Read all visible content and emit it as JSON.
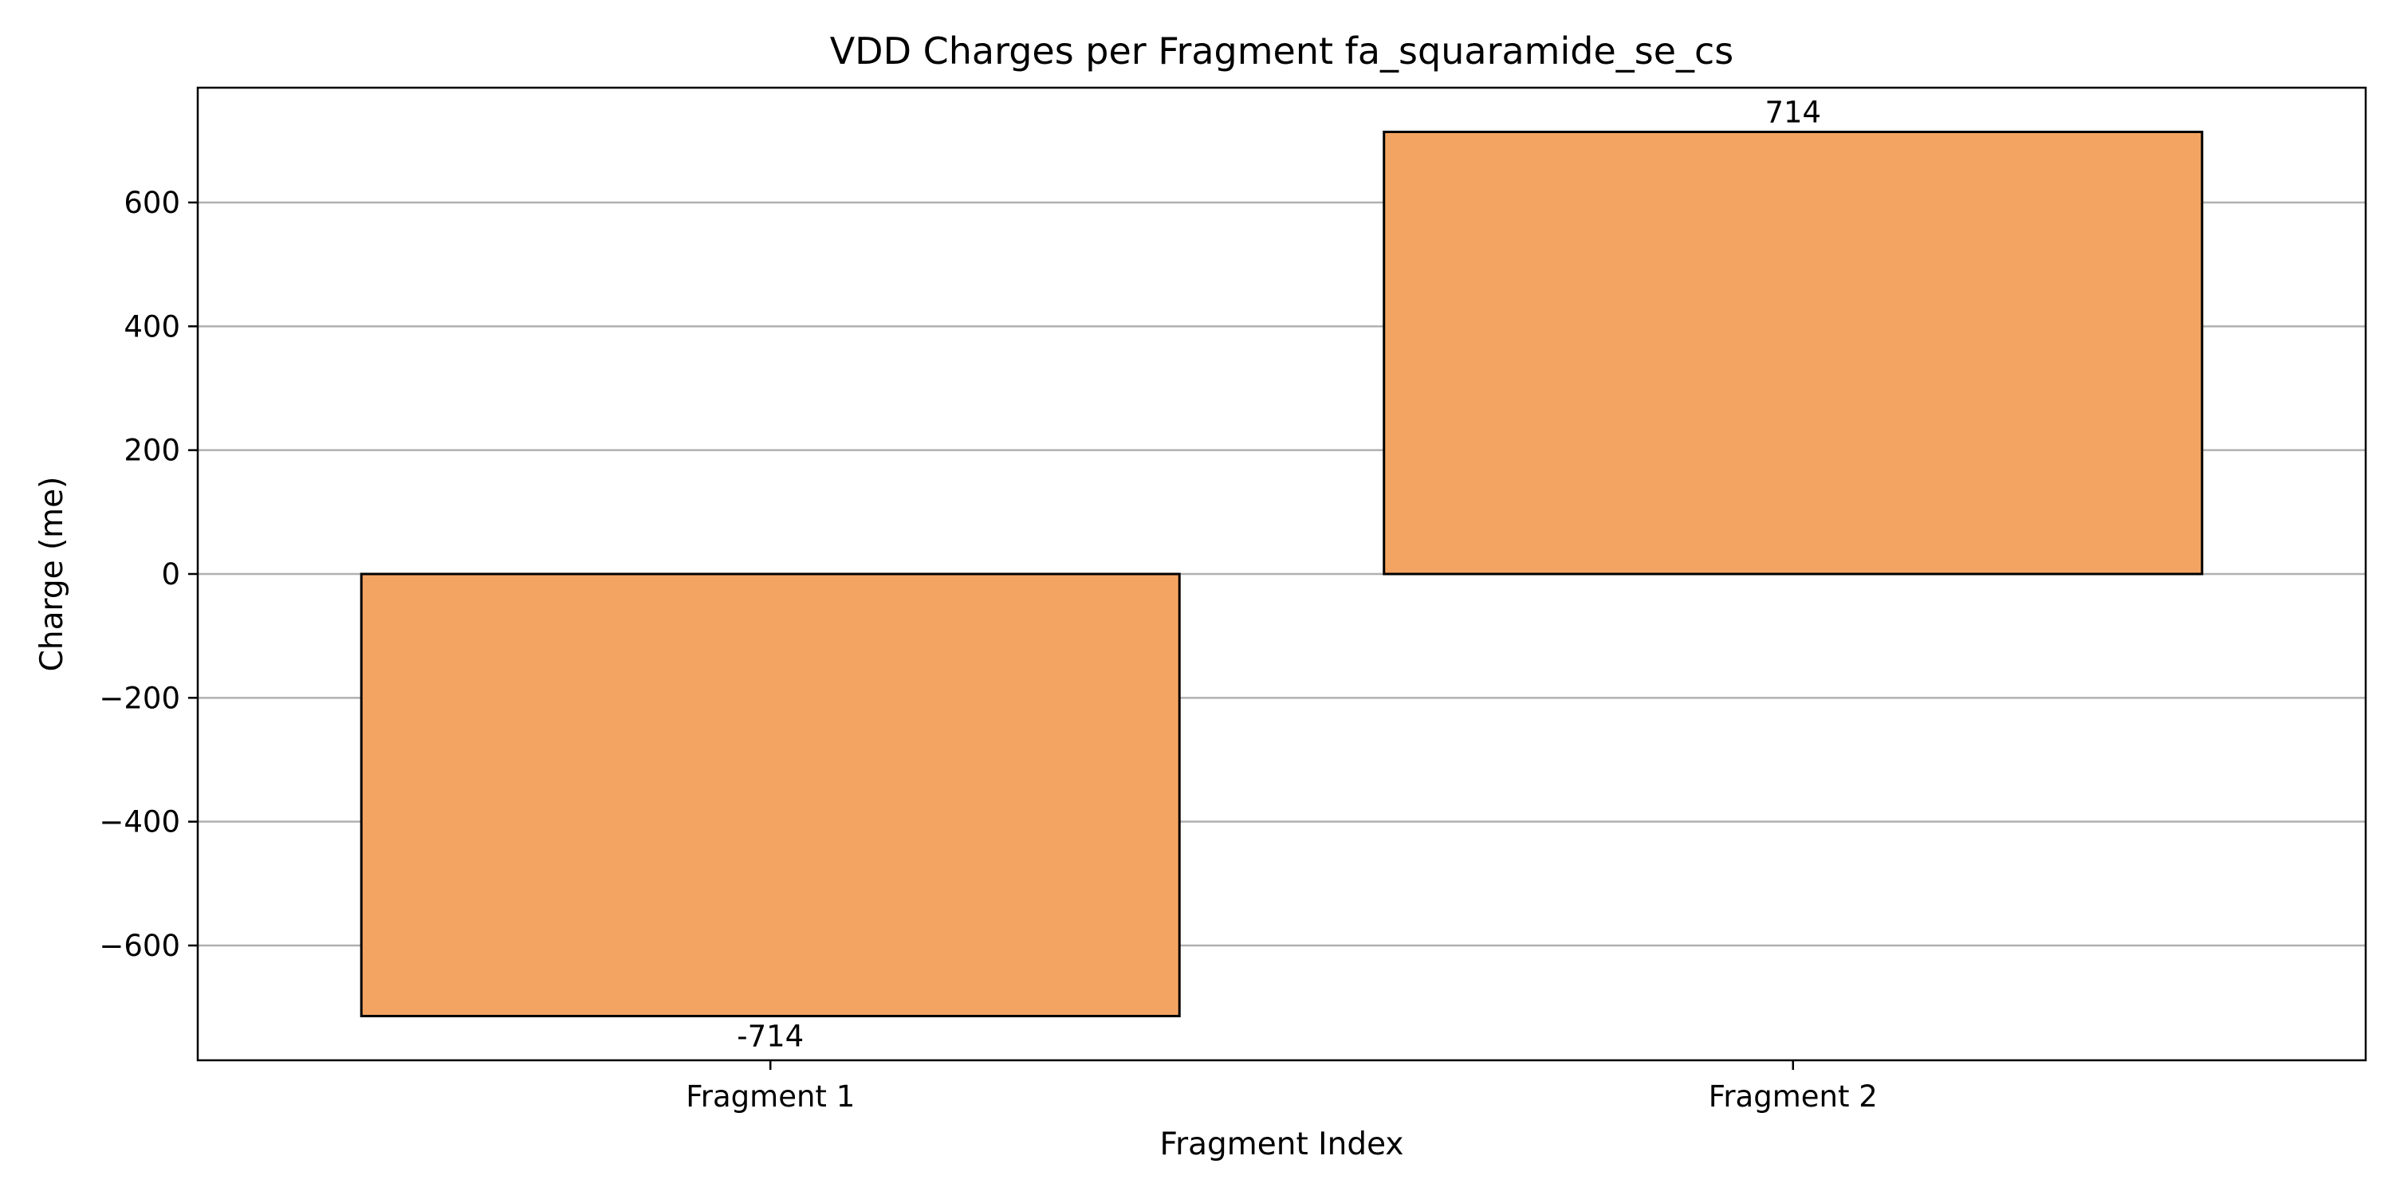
{
  "chart_data": {
    "type": "bar",
    "title": "VDD Charges per Fragment fa_squaramide_se_cs",
    "xlabel": "Fragment Index",
    "ylabel": "Charge (me)",
    "categories": [
      "Fragment 1",
      "Fragment 2"
    ],
    "values": [
      -714,
      714
    ],
    "data_labels": [
      "-714",
      "714"
    ],
    "ylim": [
      -785.4,
      785.4
    ],
    "yticks": [
      -600,
      -400,
      -200,
      0,
      200,
      400,
      600
    ],
    "ytick_labels": [
      "−600",
      "−400",
      "−200",
      "0",
      "200",
      "400",
      "600"
    ],
    "grid": "horizontal",
    "bar_color": "#f4a462",
    "bar_edge_color": "#000000",
    "grid_color": "#b0b0b0"
  }
}
